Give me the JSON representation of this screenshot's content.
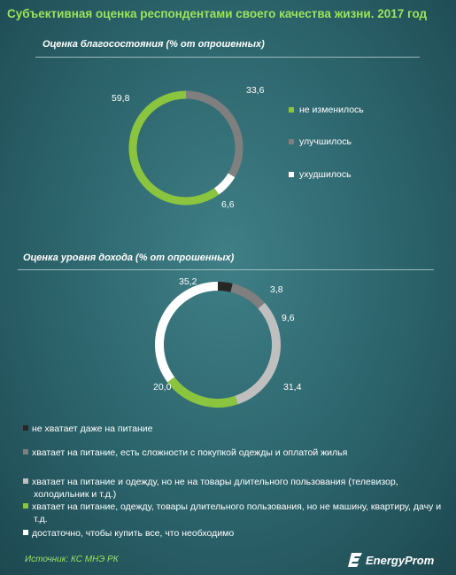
{
  "title": "Субъективная оценка респондентами своего качества жизни. 2017 год",
  "source": "Источник: КС МНЭ РК",
  "logo_text": "EnergyProm",
  "logo_icon": "energyprom-logo-icon",
  "colors": {
    "green": "#8bc53f",
    "gray": "#7f7f7f",
    "light_gray": "#bfbfbf",
    "white": "#ffffff",
    "black": "#262626",
    "title": "#9be55a"
  },
  "chart_data": [
    {
      "type": "pie",
      "title": "Оценка благосостояния  (% от опрошенных)",
      "labels": [
        "не изменилось",
        "улучшилось",
        "ухудшилось"
      ],
      "values": [
        59.8,
        33.6,
        6.6
      ],
      "value_labels": [
        "59,8",
        "33,6",
        "6,6"
      ],
      "colors": [
        "#8bc53f",
        "#7f7f7f",
        "#ffffff"
      ],
      "legend_position": "right"
    },
    {
      "type": "pie",
      "title": "Оценка уровня дохода (% от опрошенных)",
      "labels": [
        "не хватает даже на питание",
        "хватает на питание, есть сложности с покупкой одежды и оплатой жилья",
        "хватает на питание и одежду, но не на товары длительного пользования (телевизор, холодильник и т.д.)",
        "хватает на питание, одежду, товары длительного пользования, но не машину, квартиру, дачу и т.д.",
        "достаточно, чтобы купить все, что необходимо"
      ],
      "values": [
        3.8,
        9.6,
        31.4,
        20.0,
        35.2
      ],
      "value_labels": [
        "3,8",
        "9,6",
        "31,4",
        "20,0",
        "35,2"
      ],
      "colors": [
        "#262626",
        "#7f7f7f",
        "#bfbfbf",
        "#8bc53f",
        "#ffffff"
      ],
      "legend_position": "bottom"
    }
  ]
}
